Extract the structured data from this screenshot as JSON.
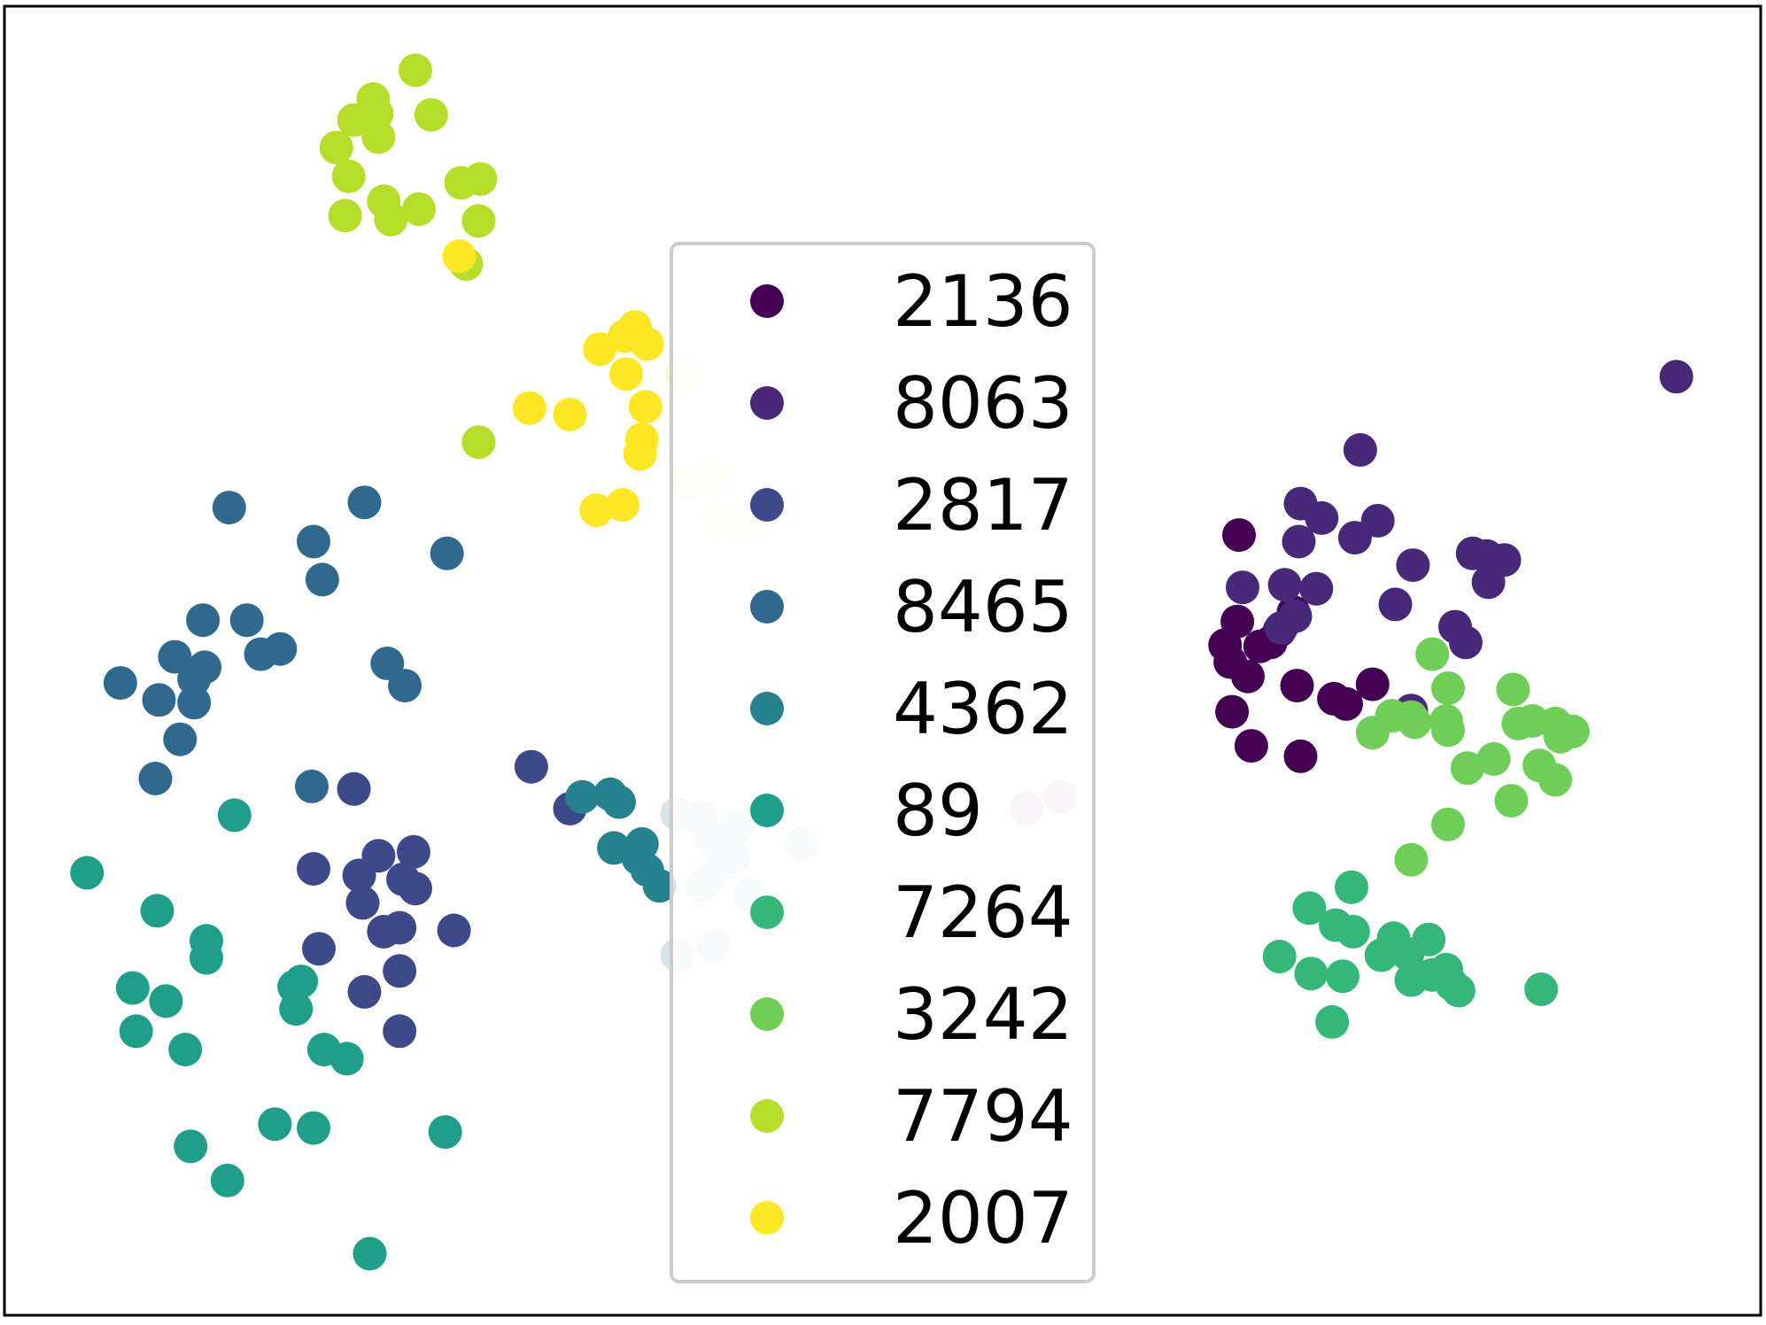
{
  "chart_data": {
    "type": "scatter",
    "title": "",
    "xlabel": "",
    "ylabel": "",
    "xlim": [
      0,
      100
    ],
    "ylim": [
      0,
      100
    ],
    "grid": false,
    "axes_ticks": false,
    "legend": {
      "placement": "center",
      "ncol": 1
    },
    "series": [
      {
        "name": "2136",
        "color": "#440154",
        "points": [
          [
            70.3,
            59.6
          ],
          [
            69.5,
            51.2
          ],
          [
            69.9,
            46.1
          ],
          [
            70.8,
            48.8
          ],
          [
            71.5,
            51.1
          ],
          [
            72.1,
            51.4
          ],
          [
            72.6,
            52.3
          ],
          [
            73.4,
            53.7
          ],
          [
            70.2,
            53.0
          ],
          [
            69.8,
            49.9
          ],
          [
            73.6,
            48.1
          ],
          [
            75.7,
            47.1
          ],
          [
            76.4,
            46.7
          ],
          [
            77.9,
            48.2
          ],
          [
            71.0,
            43.5
          ],
          [
            73.8,
            42.7
          ]
        ]
      },
      {
        "name": "8063",
        "color": "#482878",
        "points": [
          [
            95.2,
            71.7
          ],
          [
            77.2,
            66.1
          ],
          [
            73.8,
            62.0
          ],
          [
            75.0,
            60.9
          ],
          [
            73.7,
            59.1
          ],
          [
            76.9,
            59.4
          ],
          [
            78.2,
            60.7
          ],
          [
            80.2,
            57.3
          ],
          [
            83.6,
            58.2
          ],
          [
            84.4,
            58.0
          ],
          [
            85.4,
            57.7
          ],
          [
            84.5,
            56.0
          ],
          [
            70.5,
            55.6
          ],
          [
            72.9,
            55.8
          ],
          [
            74.7,
            55.5
          ],
          [
            79.2,
            54.3
          ],
          [
            82.6,
            52.6
          ],
          [
            83.2,
            51.4
          ],
          [
            73.5,
            53.4
          ],
          [
            72.7,
            52.5
          ],
          [
            80.1,
            46.2
          ]
        ]
      },
      {
        "name": "2817",
        "color": "#3e4989",
        "points": [
          [
            19.9,
            40.2
          ],
          [
            17.6,
            34.1
          ],
          [
            20.2,
            33.6
          ],
          [
            21.3,
            35.1
          ],
          [
            23.3,
            35.4
          ],
          [
            22.7,
            33.3
          ],
          [
            23.4,
            32.6
          ],
          [
            20.4,
            31.5
          ],
          [
            21.6,
            29.3
          ],
          [
            22.5,
            29.6
          ],
          [
            25.6,
            29.4
          ],
          [
            17.9,
            28.0
          ],
          [
            22.5,
            26.3
          ],
          [
            20.5,
            24.7
          ],
          [
            22.5,
            21.7
          ],
          [
            30.0,
            41.9
          ],
          [
            32.2,
            38.7
          ]
        ]
      },
      {
        "name": "8465",
        "color": "#31688e",
        "points": [
          [
            12.8,
            61.7
          ],
          [
            20.5,
            62.1
          ],
          [
            17.6,
            59.1
          ],
          [
            18.1,
            56.2
          ],
          [
            25.2,
            58.2
          ],
          [
            11.3,
            53.1
          ],
          [
            13.8,
            53.1
          ],
          [
            9.7,
            50.3
          ],
          [
            11.4,
            49.5
          ],
          [
            14.6,
            50.5
          ],
          [
            15.7,
            50.9
          ],
          [
            10.8,
            48.6
          ],
          [
            6.6,
            48.3
          ],
          [
            8.8,
            47.0
          ],
          [
            10.8,
            46.8
          ],
          [
            21.8,
            49.8
          ],
          [
            22.8,
            48.1
          ],
          [
            10.0,
            44.0
          ],
          [
            8.6,
            41.0
          ],
          [
            17.5,
            40.4
          ]
        ]
      },
      {
        "name": "4362",
        "color": "#26828e",
        "points": [
          [
            32.9,
            39.6
          ],
          [
            34.5,
            39.8
          ],
          [
            35.0,
            39.2
          ],
          [
            34.7,
            35.7
          ],
          [
            36.3,
            36.0
          ],
          [
            36.1,
            34.9
          ],
          [
            36.6,
            34.0
          ],
          [
            37.3,
            32.8
          ]
        ]
      },
      {
        "name": "89",
        "color": "#1f9e89",
        "points": [
          [
            13.1,
            38.2
          ],
          [
            4.7,
            33.8
          ],
          [
            8.7,
            30.9
          ],
          [
            11.5,
            28.6
          ],
          [
            11.5,
            27.3
          ],
          [
            7.3,
            25.0
          ],
          [
            9.2,
            24.0
          ],
          [
            16.6,
            23.4
          ],
          [
            7.5,
            21.7
          ],
          [
            16.9,
            25.5
          ],
          [
            16.5,
            25.1
          ],
          [
            10.3,
            20.3
          ],
          [
            18.2,
            20.3
          ],
          [
            19.5,
            19.6
          ],
          [
            25.1,
            14.0
          ],
          [
            15.4,
            14.6
          ],
          [
            17.6,
            14.3
          ],
          [
            10.6,
            12.9
          ],
          [
            12.7,
            10.3
          ],
          [
            20.8,
            4.7
          ]
        ]
      },
      {
        "name": "7264",
        "color": "#35b779",
        "points": [
          [
            76.7,
            32.7
          ],
          [
            74.3,
            31.1
          ],
          [
            75.8,
            29.8
          ],
          [
            76.8,
            29.3
          ],
          [
            79.1,
            28.8
          ],
          [
            81.1,
            28.7
          ],
          [
            72.6,
            27.4
          ],
          [
            74.4,
            26.1
          ],
          [
            76.2,
            25.9
          ],
          [
            78.4,
            27.5
          ],
          [
            79.9,
            27.6
          ],
          [
            80.1,
            25.6
          ],
          [
            81.3,
            26.0
          ],
          [
            82.1,
            26.4
          ],
          [
            82.4,
            25.3
          ],
          [
            82.8,
            24.8
          ],
          [
            87.5,
            24.9
          ],
          [
            75.6,
            22.4
          ]
        ]
      },
      {
        "name": "3242",
        "color": "#6ece58",
        "points": [
          [
            81.3,
            50.5
          ],
          [
            82.2,
            47.9
          ],
          [
            79.0,
            45.8
          ],
          [
            77.9,
            44.5
          ],
          [
            80.1,
            45.7
          ],
          [
            80.3,
            45.3
          ],
          [
            82.1,
            45.4
          ],
          [
            82.2,
            44.7
          ],
          [
            85.9,
            47.8
          ],
          [
            86.2,
            45.2
          ],
          [
            87.0,
            45.4
          ],
          [
            88.3,
            45.2
          ],
          [
            88.6,
            44.2
          ],
          [
            89.3,
            44.6
          ],
          [
            83.3,
            41.8
          ],
          [
            84.8,
            42.5
          ],
          [
            87.4,
            42.0
          ],
          [
            88.3,
            40.9
          ],
          [
            85.8,
            39.3
          ],
          [
            82.2,
            37.5
          ],
          [
            80.1,
            34.8
          ]
        ]
      },
      {
        "name": "7794",
        "color": "#b5de2b",
        "points": [
          [
            23.4,
            95.1
          ],
          [
            21.0,
            92.9
          ],
          [
            21.2,
            91.8
          ],
          [
            19.9,
            91.3
          ],
          [
            24.3,
            91.7
          ],
          [
            21.3,
            90.0
          ],
          [
            18.9,
            89.2
          ],
          [
            19.6,
            87.0
          ],
          [
            26.0,
            86.5
          ],
          [
            27.1,
            86.8
          ],
          [
            21.6,
            85.1
          ],
          [
            23.6,
            84.5
          ],
          [
            19.4,
            84.0
          ],
          [
            22.0,
            83.7
          ],
          [
            27.0,
            83.6
          ],
          [
            26.3,
            80.3
          ],
          [
            27.0,
            66.7
          ]
        ]
      },
      {
        "name": "2007",
        "color": "#fde725",
        "points": [
          [
            25.9,
            80.9
          ],
          [
            35.9,
            75.5
          ],
          [
            35.3,
            74.8
          ],
          [
            33.9,
            73.8
          ],
          [
            36.6,
            74.2
          ],
          [
            35.4,
            71.9
          ],
          [
            29.9,
            69.3
          ],
          [
            32.2,
            68.8
          ],
          [
            36.5,
            69.4
          ],
          [
            36.3,
            66.9
          ],
          [
            36.2,
            65.8
          ],
          [
            35.2,
            61.9
          ],
          [
            33.7,
            61.5
          ]
        ]
      }
    ],
    "faded_points": [
      {
        "color": "#fdf6d2",
        "points": [
          [
            38.6,
            71.9
          ],
          [
            38.9,
            63.7
          ],
          [
            40.3,
            63.9
          ],
          [
            40.8,
            60.8
          ],
          [
            42.6,
            60.3
          ]
        ]
      },
      {
        "color": "#d4e6ea",
        "points": [
          [
            38.3,
            38.3
          ],
          [
            39.6,
            38.0
          ],
          [
            40.1,
            36.7
          ],
          [
            41.7,
            37.3
          ],
          [
            45.4,
            36.0
          ],
          [
            40.9,
            35.8
          ],
          [
            41.5,
            35.0
          ],
          [
            40.4,
            33.8
          ],
          [
            39.7,
            32.8
          ],
          [
            42.5,
            32.1
          ],
          [
            40.4,
            28.3
          ],
          [
            38.3,
            27.5
          ]
        ]
      },
      {
        "color": "#dfcde2",
        "points": [
          [
            58.2,
            38.7
          ],
          [
            60.1,
            39.6
          ]
        ]
      }
    ]
  }
}
